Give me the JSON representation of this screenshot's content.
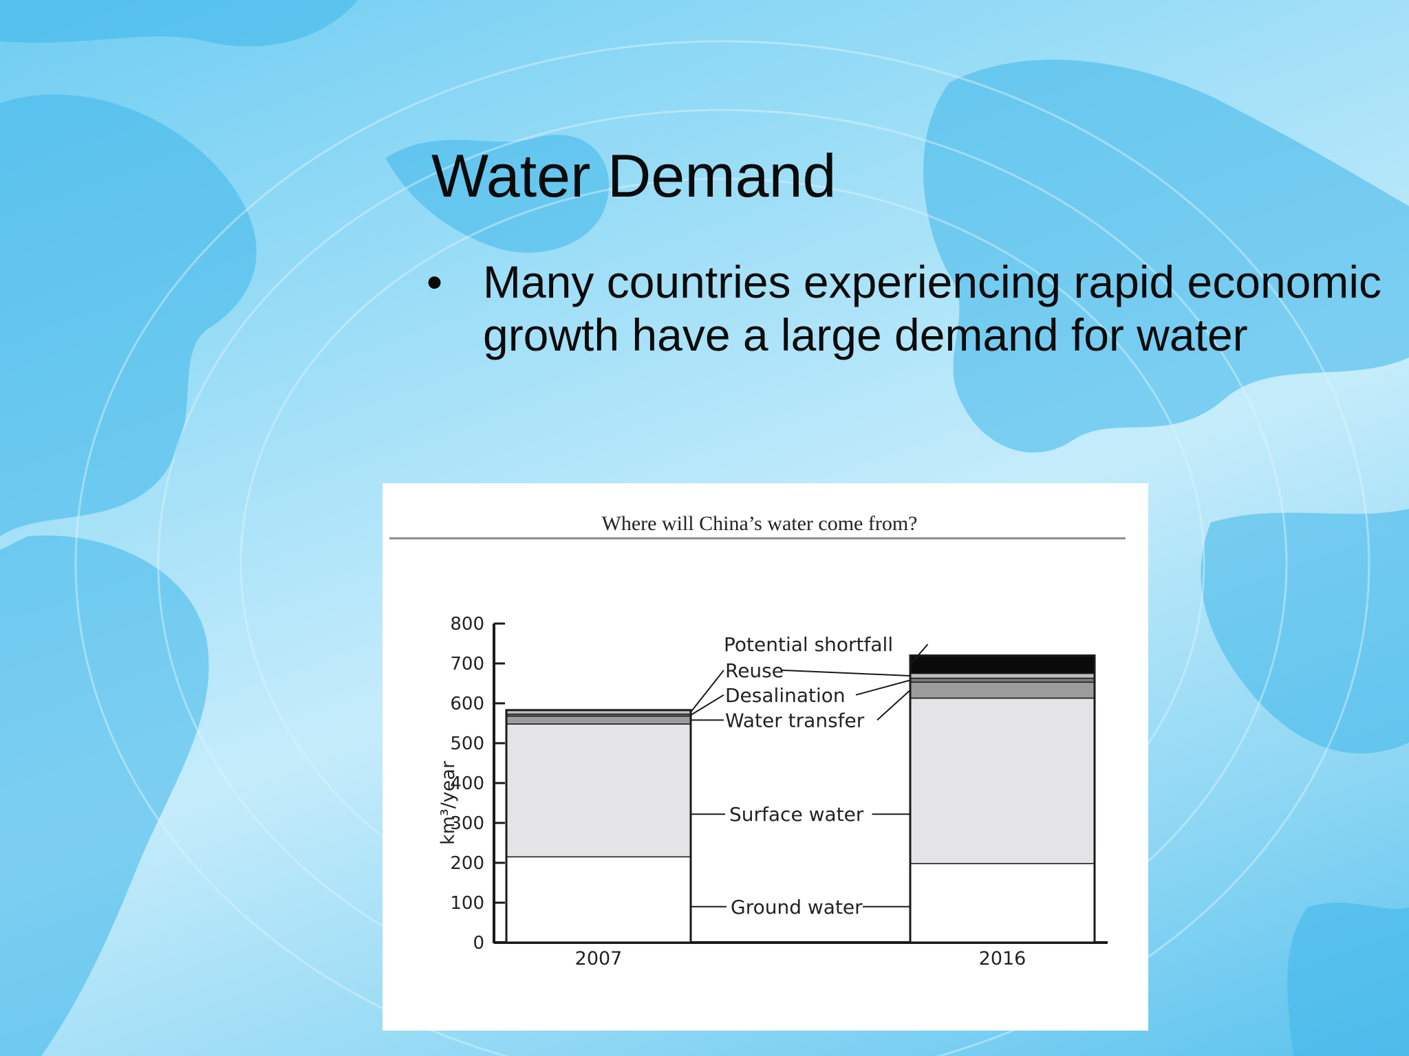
{
  "slide": {
    "title": "Water Demand",
    "bullets": [
      {
        "marker": "•",
        "text": "Many countries experiencing rapid economic growth have a large demand for water"
      }
    ]
  },
  "colors": {
    "background": "#8fd7f4",
    "land": "#3fb7ea",
    "ground_water": "#ffffff",
    "surface_water": "#e4e4e6",
    "water_transfer": "#9c9c9c",
    "desalination": "#7a7a7a",
    "reuse": "#bdbdbd",
    "potential_shortfall": "#0a0a0a"
  },
  "chart_data": {
    "type": "bar",
    "stacked": true,
    "title": "Where will China’s water come from?",
    "ylabel": "km³/year",
    "ylim": [
      0,
      800
    ],
    "yticks": [
      0,
      100,
      200,
      300,
      400,
      500,
      600,
      700,
      800
    ],
    "categories": [
      "2007",
      "2016"
    ],
    "series": [
      {
        "name": "Ground water",
        "values": [
          215,
          198
        ],
        "color": "#ffffff"
      },
      {
        "name": "Surface water",
        "values": [
          333,
          415
        ],
        "color": "#e4e4e6"
      },
      {
        "name": "Water transfer",
        "values": [
          20,
          40
        ],
        "color": "#9c9c9c"
      },
      {
        "name": "Desalination",
        "values": [
          5,
          10
        ],
        "color": "#7a7a7a"
      },
      {
        "name": "Reuse",
        "values": [
          10,
          12
        ],
        "color": "#bdbdbd"
      },
      {
        "name": "Potential shortfall",
        "values": [
          0,
          45
        ],
        "color": "#0a0a0a"
      }
    ],
    "grid": false,
    "legend": "callouts-between-bars"
  }
}
